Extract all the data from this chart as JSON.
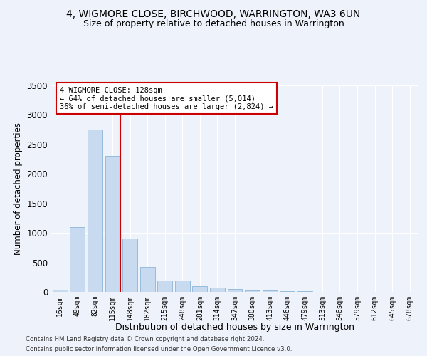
{
  "title1": "4, WIGMORE CLOSE, BIRCHWOOD, WARRINGTON, WA3 6UN",
  "title2": "Size of property relative to detached houses in Warrington",
  "xlabel": "Distribution of detached houses by size in Warrington",
  "ylabel": "Number of detached properties",
  "categories": [
    "16sqm",
    "49sqm",
    "82sqm",
    "115sqm",
    "148sqm",
    "182sqm",
    "215sqm",
    "248sqm",
    "281sqm",
    "314sqm",
    "347sqm",
    "380sqm",
    "413sqm",
    "446sqm",
    "479sqm",
    "513sqm",
    "546sqm",
    "579sqm",
    "612sqm",
    "645sqm",
    "678sqm"
  ],
  "values": [
    40,
    1100,
    2750,
    2300,
    900,
    420,
    195,
    195,
    100,
    70,
    45,
    30,
    25,
    15,
    10,
    5,
    3,
    2,
    1,
    1,
    0
  ],
  "bar_color": "#c8daf0",
  "bar_edge_color": "#8ab4d8",
  "vline_x_index": 3.45,
  "vline_color": "#cc0000",
  "annotation_title": "4 WIGMORE CLOSE: 128sqm",
  "annotation_line1": "← 64% of detached houses are smaller (5,014)",
  "annotation_line2": "36% of semi-detached houses are larger (2,824) →",
  "annotation_box_color": "#cc0000",
  "ylim": [
    0,
    3500
  ],
  "yticks": [
    0,
    500,
    1000,
    1500,
    2000,
    2500,
    3000,
    3500
  ],
  "footer1": "Contains HM Land Registry data © Crown copyright and database right 2024.",
  "footer2": "Contains public sector information licensed under the Open Government Licence v3.0.",
  "bg_color": "#eef2fa",
  "plot_bg_color": "#eef2fa"
}
